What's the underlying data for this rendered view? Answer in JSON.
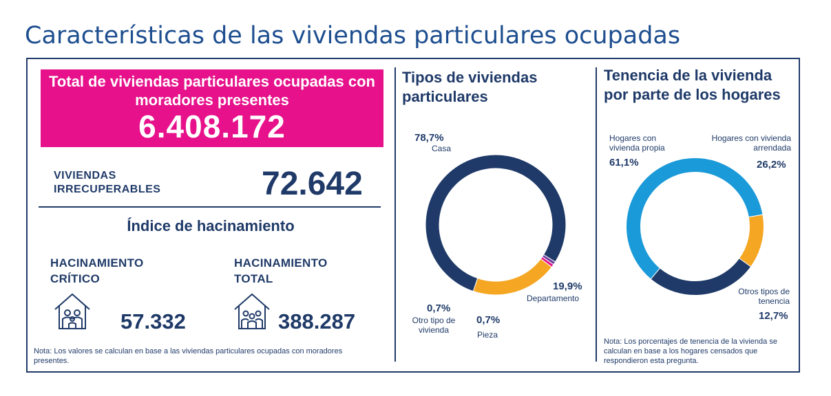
{
  "title": "Características de las viviendas particulares ocupadas",
  "total": {
    "label": "Total de viviendas particulares ocupadas con moradores presentes",
    "value": "6.408.172"
  },
  "irrecuperables": {
    "label": [
      "VIVIENDAS",
      "IRRECUPERABLES"
    ],
    "value": "72.642"
  },
  "hacinamiento": {
    "title": "Índice de hacinamiento",
    "critico": {
      "label": [
        "HACINAMIENTO",
        "CRÍTICO"
      ],
      "value": "57.332"
    },
    "total": {
      "label": [
        "HACINAMIENTO",
        "TOTAL"
      ],
      "value": "388.287"
    }
  },
  "note_left": "Nota: Los valores se calculan en base a las viviendas particulares ocupadas con moradores presentes.",
  "note_right": "Nota: Los porcentajes de tenencia de la vivienda se calculan en base a los hogares censados que respondieron esta pregunta.",
  "colors": {
    "navy": "#1f3a68",
    "orange": "#f5a623",
    "blue": "#1a9ad8",
    "pink": "#e6118b",
    "purple": "#6b3fa0"
  },
  "chart_data": [
    {
      "type": "pie",
      "title": "Tipos de viviendas particulares",
      "slices": [
        {
          "label": "Casa",
          "pct_label": "78,7%",
          "value": 78.7,
          "color": "#1f3a68"
        },
        {
          "label": "Departamento",
          "pct_label": "19,9%",
          "value": 19.9,
          "color": "#f5a623"
        },
        {
          "label": "Pieza",
          "pct_label": "0,7%",
          "value": 0.7,
          "color": "#e6118b"
        },
        {
          "label": "Otro tipo de vivienda",
          "pct_label": "0,7%",
          "value": 0.7,
          "color": "#6b3fa0"
        }
      ]
    },
    {
      "type": "pie",
      "title": "Tenencia de la vivienda por parte de los hogares",
      "slices": [
        {
          "label": "Hogares con vivienda propia",
          "pct_label": "61,1%",
          "value": 61.1,
          "color": "#1a9ad8"
        },
        {
          "label": "Hogares con vivienda arrendada",
          "pct_label": "26,2%",
          "value": 26.2,
          "color": "#1f3a68"
        },
        {
          "label": "Otros tipos de tenencia",
          "pct_label": "12,7%",
          "value": 12.7,
          "color": "#f5a623"
        }
      ]
    }
  ]
}
